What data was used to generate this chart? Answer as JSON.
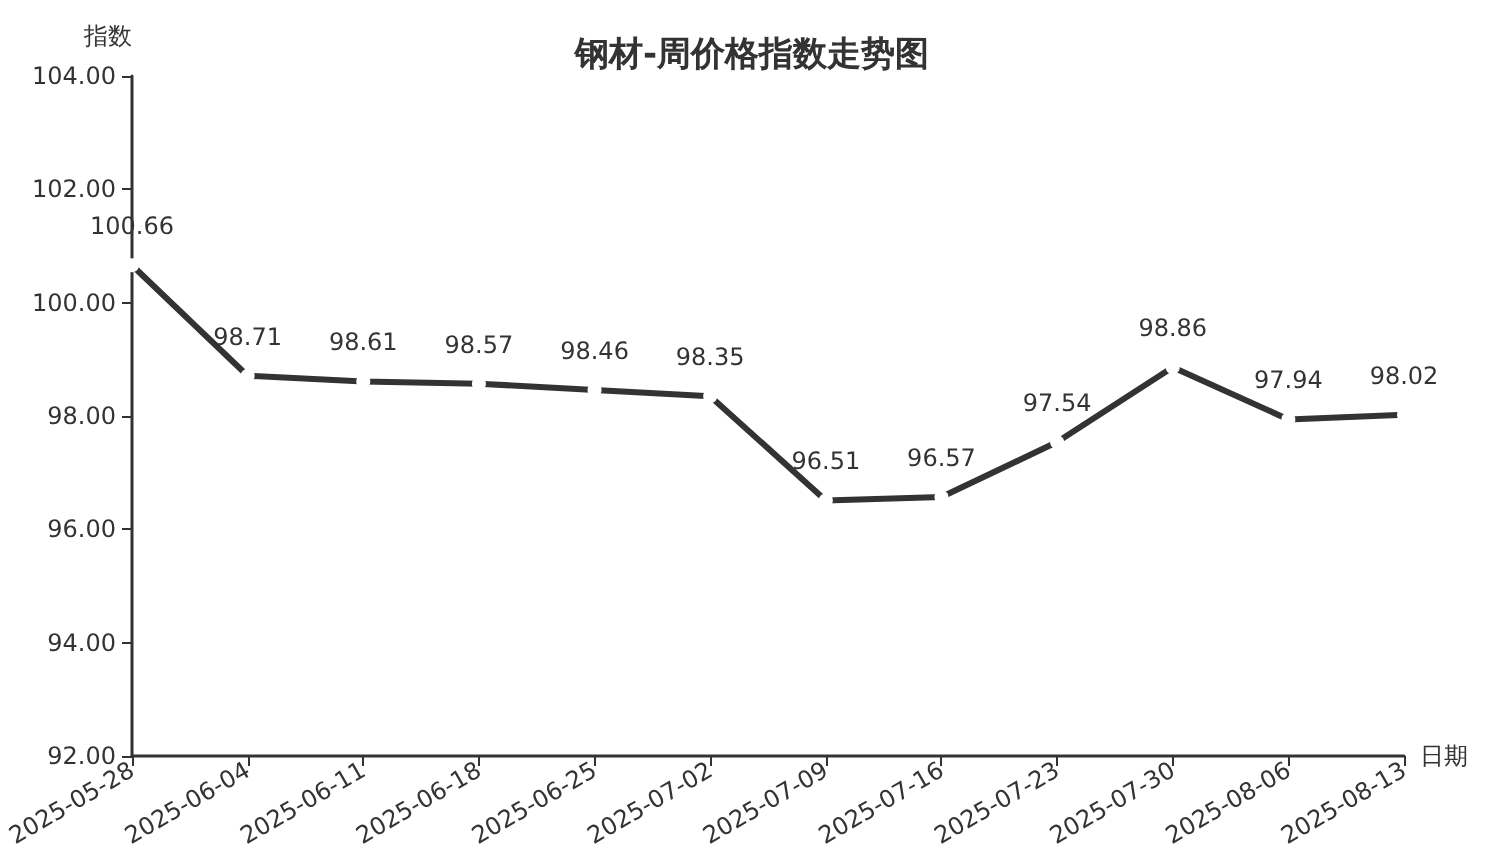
{
  "chart_data": {
    "type": "line",
    "title": "钢材-周价格指数走势图",
    "ylabel": "指数",
    "xlabel": "日期",
    "categories": [
      "2025-05-28",
      "2025-06-04",
      "2025-06-11",
      "2025-06-18",
      "2025-06-25",
      "2025-07-02",
      "2025-07-09",
      "2025-07-16",
      "2025-07-23",
      "2025-07-30",
      "2025-08-06",
      "2025-08-13"
    ],
    "series": [
      {
        "color": "#333333",
        "values": [
          100.66,
          98.71,
          98.61,
          98.57,
          98.46,
          98.35,
          96.51,
          96.57,
          97.54,
          98.86,
          97.94,
          98.02
        ]
      }
    ],
    "ylim": [
      92,
      104
    ],
    "yticks": [
      {
        "value": 92,
        "label": "92.00"
      },
      {
        "value": 94,
        "label": "94.00"
      },
      {
        "value": 96,
        "label": "96.00"
      },
      {
        "value": 98,
        "label": "98.00"
      },
      {
        "value": 100,
        "label": "100.00"
      },
      {
        "value": 102,
        "label": "102.00"
      },
      {
        "value": 104,
        "label": "104.00"
      }
    ],
    "grid": false,
    "marker": "circle",
    "line_style": "solid",
    "data_labels": true
  }
}
